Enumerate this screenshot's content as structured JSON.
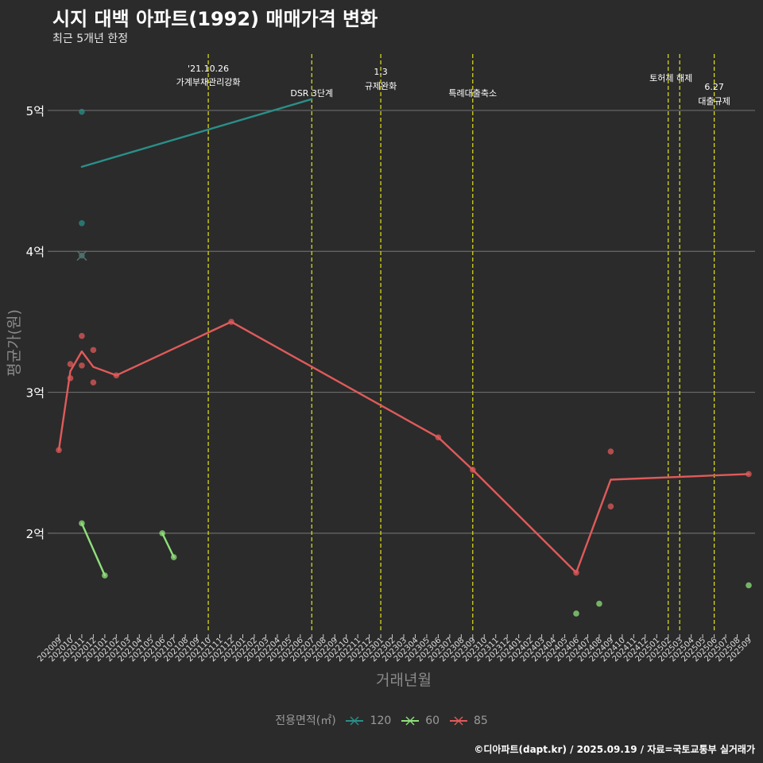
{
  "header": {
    "title": "시지 대백 아파트(1992) 매매가격 변화",
    "subtitle": "최근 5개년 한정",
    "caption": "©디아파트(dapt.kr) / 2025.09.19 / 자료=국토교통부 실거래가"
  },
  "legend": {
    "title": "전용면적(㎡)",
    "items": [
      {
        "label": "120",
        "color": "#2a8f88"
      },
      {
        "label": "60",
        "color": "#8ee07a"
      },
      {
        "label": "85",
        "color": "#e05a5a"
      }
    ]
  },
  "chart_data": {
    "type": "line",
    "title": "시지 대백 아파트(1992) 매매가격 변화",
    "subtitle": "최근 5개년 한정",
    "xlabel": "거래년월",
    "ylabel": "평균가(원)",
    "ylim": [
      1.3,
      5.4
    ],
    "yticks": [
      {
        "value": 2,
        "label": "2억"
      },
      {
        "value": 3,
        "label": "3억"
      },
      {
        "value": 4,
        "label": "4억"
      },
      {
        "value": 5,
        "label": "5억"
      }
    ],
    "x_categories": [
      "202009",
      "202010",
      "202011",
      "202012",
      "202101",
      "202102",
      "202103",
      "202104",
      "202105",
      "202106",
      "202107",
      "202108",
      "202109",
      "202110",
      "202111",
      "202112",
      "202201",
      "202202",
      "202203",
      "202204",
      "202205",
      "202206",
      "202207",
      "202208",
      "202209",
      "202210",
      "202211",
      "202212",
      "202301",
      "202302",
      "202303",
      "202304",
      "202305",
      "202306",
      "202307",
      "202308",
      "202309",
      "202310",
      "202311",
      "202312",
      "202401",
      "202402",
      "202403",
      "202404",
      "202405",
      "202406",
      "202407",
      "202408",
      "202409",
      "202410",
      "202411",
      "202412",
      "202501",
      "202502",
      "202503",
      "202504",
      "202505",
      "202506",
      "202507",
      "202508",
      "202509"
    ],
    "grid": true,
    "legend_position": "bottom",
    "events": [
      {
        "x": "202110",
        "label_lines": [
          "'21.10.26",
          "가계부채관리강화"
        ]
      },
      {
        "x": "202207",
        "label_lines": [
          "DSR 3단계"
        ]
      },
      {
        "x": "202301",
        "label_lines": [
          "1.3",
          "규제완화"
        ]
      },
      {
        "x": "202309",
        "label_lines": [
          "특례대출축소"
        ]
      },
      {
        "x": "202502",
        "label_lines": [
          ""
        ]
      },
      {
        "x": "202503",
        "label_lines": [
          "토허제 해제"
        ]
      },
      {
        "x": "202506",
        "label_lines": [
          "6.27",
          "대출규제"
        ]
      }
    ],
    "series": [
      {
        "name": "120",
        "color": "#2a8f88",
        "points": [
          {
            "x": "202011",
            "y": 4.99
          },
          {
            "x": "202011",
            "y": 4.2
          },
          {
            "x": "202011",
            "y": 3.97
          }
        ],
        "line": [
          {
            "x": "202011",
            "y": 4.6
          },
          {
            "x": "202207",
            "y": 5.08
          }
        ],
        "markers": [
          {
            "x": "202011",
            "y": 3.97
          }
        ]
      },
      {
        "name": "60",
        "color": "#8ee07a",
        "points": [
          {
            "x": "202011",
            "y": 2.07
          },
          {
            "x": "202101",
            "y": 1.7
          },
          {
            "x": "202106",
            "y": 2.0
          },
          {
            "x": "202107",
            "y": 1.83
          },
          {
            "x": "202406",
            "y": 1.43
          },
          {
            "x": "202408",
            "y": 1.5
          },
          {
            "x": "202509",
            "y": 1.63
          }
        ],
        "lines": [
          [
            {
              "x": "202011",
              "y": 2.07
            },
            {
              "x": "202101",
              "y": 1.7
            }
          ],
          [
            {
              "x": "202106",
              "y": 2.0
            },
            {
              "x": "202107",
              "y": 1.83
            }
          ]
        ]
      },
      {
        "name": "85",
        "color": "#e05a5a",
        "points": [
          {
            "x": "202009",
            "y": 2.59
          },
          {
            "x": "202010",
            "y": 3.2
          },
          {
            "x": "202010",
            "y": 3.1
          },
          {
            "x": "202011",
            "y": 3.4
          },
          {
            "x": "202011",
            "y": 3.19
          },
          {
            "x": "202012",
            "y": 3.3
          },
          {
            "x": "202012",
            "y": 3.07
          },
          {
            "x": "202102",
            "y": 3.12
          },
          {
            "x": "202112",
            "y": 3.5
          },
          {
            "x": "202306",
            "y": 2.68
          },
          {
            "x": "202309",
            "y": 2.45
          },
          {
            "x": "202406",
            "y": 1.72
          },
          {
            "x": "202409",
            "y": 2.58
          },
          {
            "x": "202409",
            "y": 2.19
          },
          {
            "x": "202509",
            "y": 2.42
          }
        ],
        "line": [
          {
            "x": "202009",
            "y": 2.59
          },
          {
            "x": "202010",
            "y": 3.15
          },
          {
            "x": "202011",
            "y": 3.29
          },
          {
            "x": "202012",
            "y": 3.18
          },
          {
            "x": "202102",
            "y": 3.12
          },
          {
            "x": "202112",
            "y": 3.5
          },
          {
            "x": "202306",
            "y": 2.68
          },
          {
            "x": "202309",
            "y": 2.45
          },
          {
            "x": "202406",
            "y": 1.72
          },
          {
            "x": "202409",
            "y": 2.38
          },
          {
            "x": "202509",
            "y": 2.42
          }
        ]
      }
    ]
  }
}
